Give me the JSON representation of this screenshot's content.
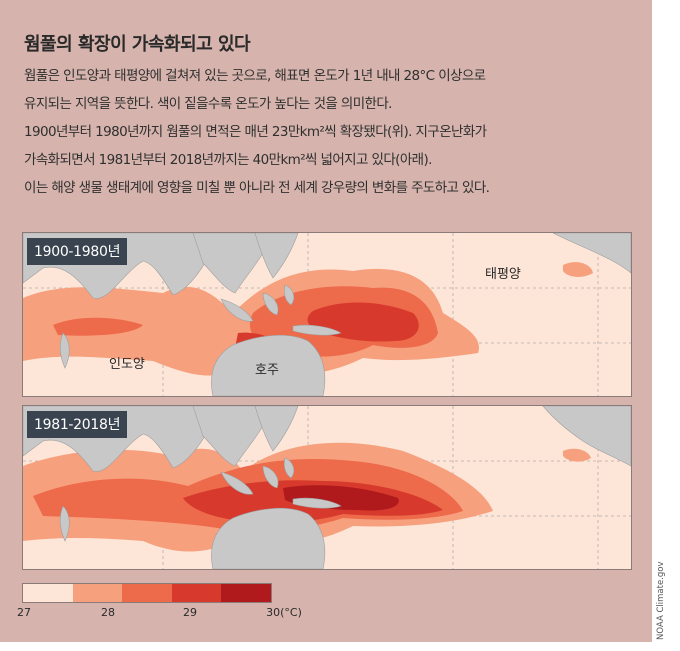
{
  "title": "웜풀의 확장이 가속화되고 있다",
  "paragraph_lines": [
    "웜풀은 인도양과 태평양에 걸쳐져 있는 곳으로, 해표면 온도가 1년 내내 28°C 이상으로",
    "유지되는 지역을 뜻한다. 색이 짙을수록 온도가 높다는 것을 의미한다.",
    "1900년부터 1980년까지 웜풀의 면적은 매년 23만km²씩 확장됐다(위). 지구온난화가",
    "가속화되면서 1981년부터 2018년까지는 40만km²씩 넓어지고 있다(아래).",
    "이는 해양 생물 생태계에 영향을 미칠 뿐 아니라 전 세계 강우량의 변화를 주도하고 있다."
  ],
  "maps": [
    {
      "period": "1900-1980년",
      "labels": {
        "indian_ocean": "인도양",
        "australia": "호주",
        "pacific": "태평양"
      }
    },
    {
      "period": "1981-2018년"
    }
  ],
  "legend": {
    "ticks": [
      "27",
      "28",
      "29",
      "30(°C)"
    ],
    "colors": [
      "#fde6d8",
      "#f6a07e",
      "#ed6a4b",
      "#d73a2c",
      "#b01a1c"
    ]
  },
  "colors": {
    "background": "#d6b4ad",
    "ocean": "#fde6d8",
    "land": "#c8c8c8",
    "level_28": "#f6a07e",
    "level_28_5": "#ed6a4b",
    "level_29": "#d73a2c",
    "level_30": "#b01a1c"
  },
  "credit": "NOAA Climate.gov"
}
